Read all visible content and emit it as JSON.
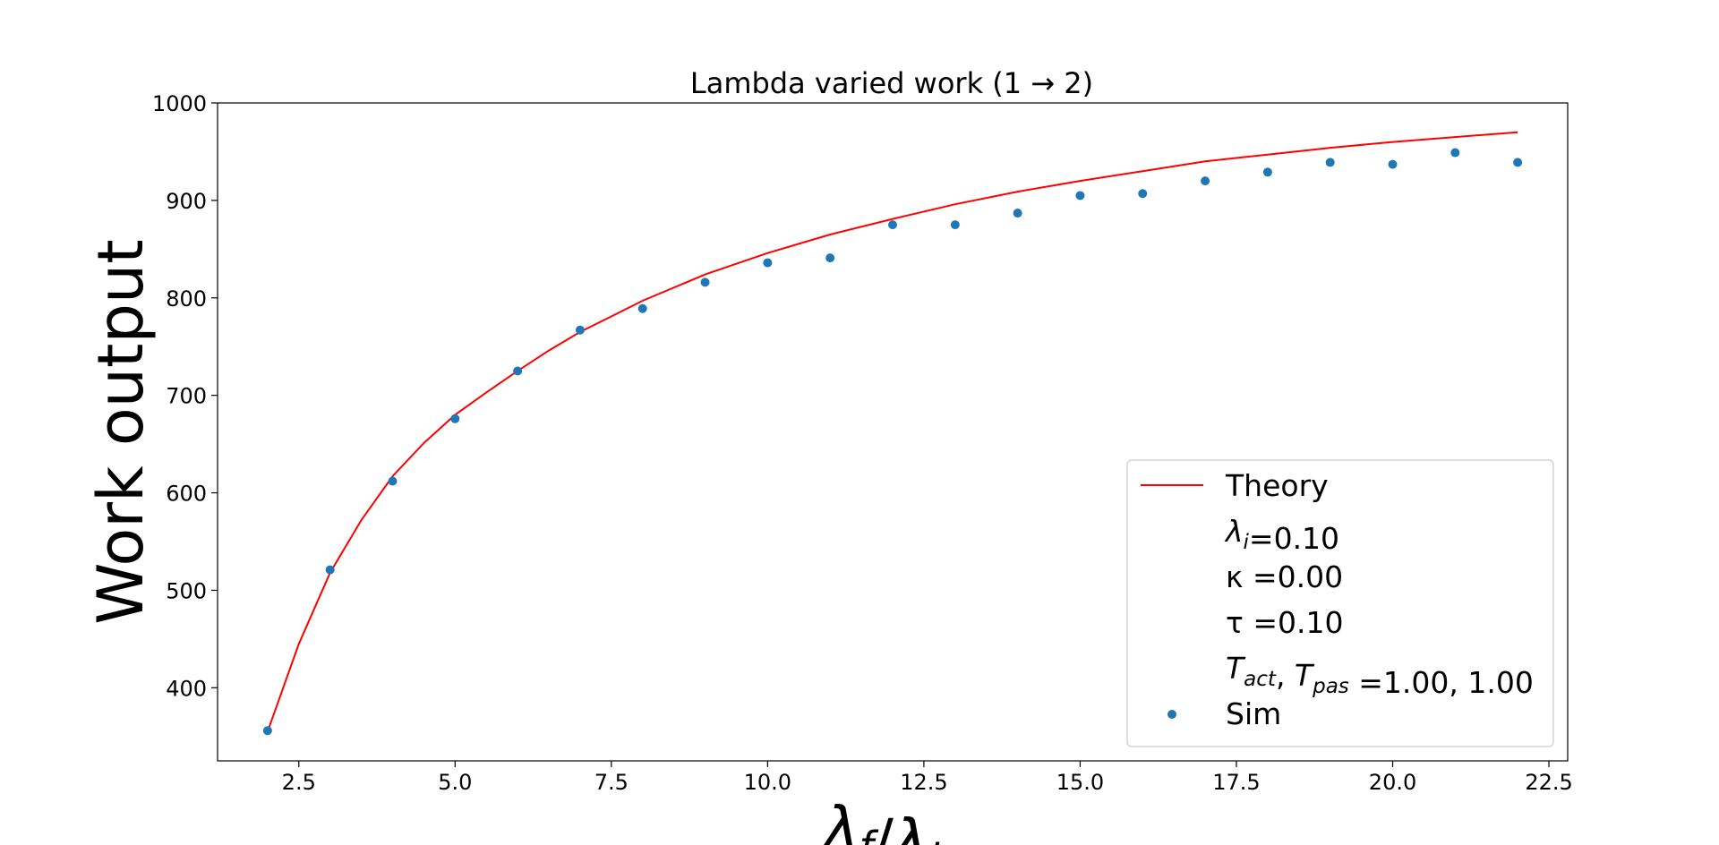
{
  "chart_data": {
    "type": "scatter",
    "title": "Lambda varied work (1 → 2)",
    "xlabel": "λf/λi",
    "ylabel": "Work output",
    "xlim": [
      1.2,
      22.8
    ],
    "ylim": [
      325,
      1000
    ],
    "xticks": [
      2.5,
      5.0,
      7.5,
      10.0,
      12.5,
      15.0,
      17.5,
      20.0,
      22.5
    ],
    "xtick_labels": [
      "2.5",
      "5.0",
      "7.5",
      "10.0",
      "12.5",
      "15.0",
      "17.5",
      "20.0",
      "22.5"
    ],
    "yticks": [
      400,
      500,
      600,
      700,
      800,
      900,
      1000
    ],
    "ytick_labels": [
      "400",
      "500",
      "600",
      "700",
      "800",
      "900",
      "1000"
    ],
    "grid": false,
    "legend_position": "lower-right",
    "series": [
      {
        "name": "Theory",
        "kind": "line",
        "color": "#ff0000",
        "x": [
          2,
          2.5,
          3,
          3.5,
          4,
          4.5,
          5,
          5.5,
          6,
          6.5,
          7,
          7.5,
          8,
          9,
          10,
          11,
          12,
          13,
          14,
          15,
          16,
          17,
          18,
          19,
          20,
          21,
          22
        ],
        "y": [
          355,
          445,
          518,
          572,
          617,
          651,
          680,
          703,
          725,
          746,
          765,
          781,
          797,
          824,
          846,
          865,
          881,
          896,
          909,
          920,
          930,
          940,
          947,
          954,
          960,
          965,
          970
        ]
      },
      {
        "name": "Sim",
        "kind": "scatter",
        "color": "#1f77b4",
        "x": [
          2,
          3,
          4,
          5,
          6,
          7,
          8,
          9,
          10,
          11,
          12,
          13,
          14,
          15,
          16,
          17,
          18,
          19,
          20,
          21,
          22
        ],
        "y": [
          356,
          521,
          612,
          676,
          725,
          767,
          789,
          816,
          836,
          841,
          875,
          875,
          887,
          905,
          907,
          920,
          929,
          939,
          937,
          949,
          939
        ]
      }
    ],
    "legend_entries": [
      {
        "label": "Theory",
        "marker": "line",
        "color": "#ff0000"
      },
      {
        "base": "λ",
        "sub": "i",
        "value": "=0.10"
      },
      {
        "label": "κ =0.00"
      },
      {
        "label": "τ =0.10"
      },
      {
        "base1": "T",
        "sub1": "act",
        "base2": ", T",
        "sub2": "pas",
        "value": " =1.00, 1.00"
      },
      {
        "label": "Sim",
        "marker": "dot",
        "color": "#1f77b4"
      }
    ]
  }
}
